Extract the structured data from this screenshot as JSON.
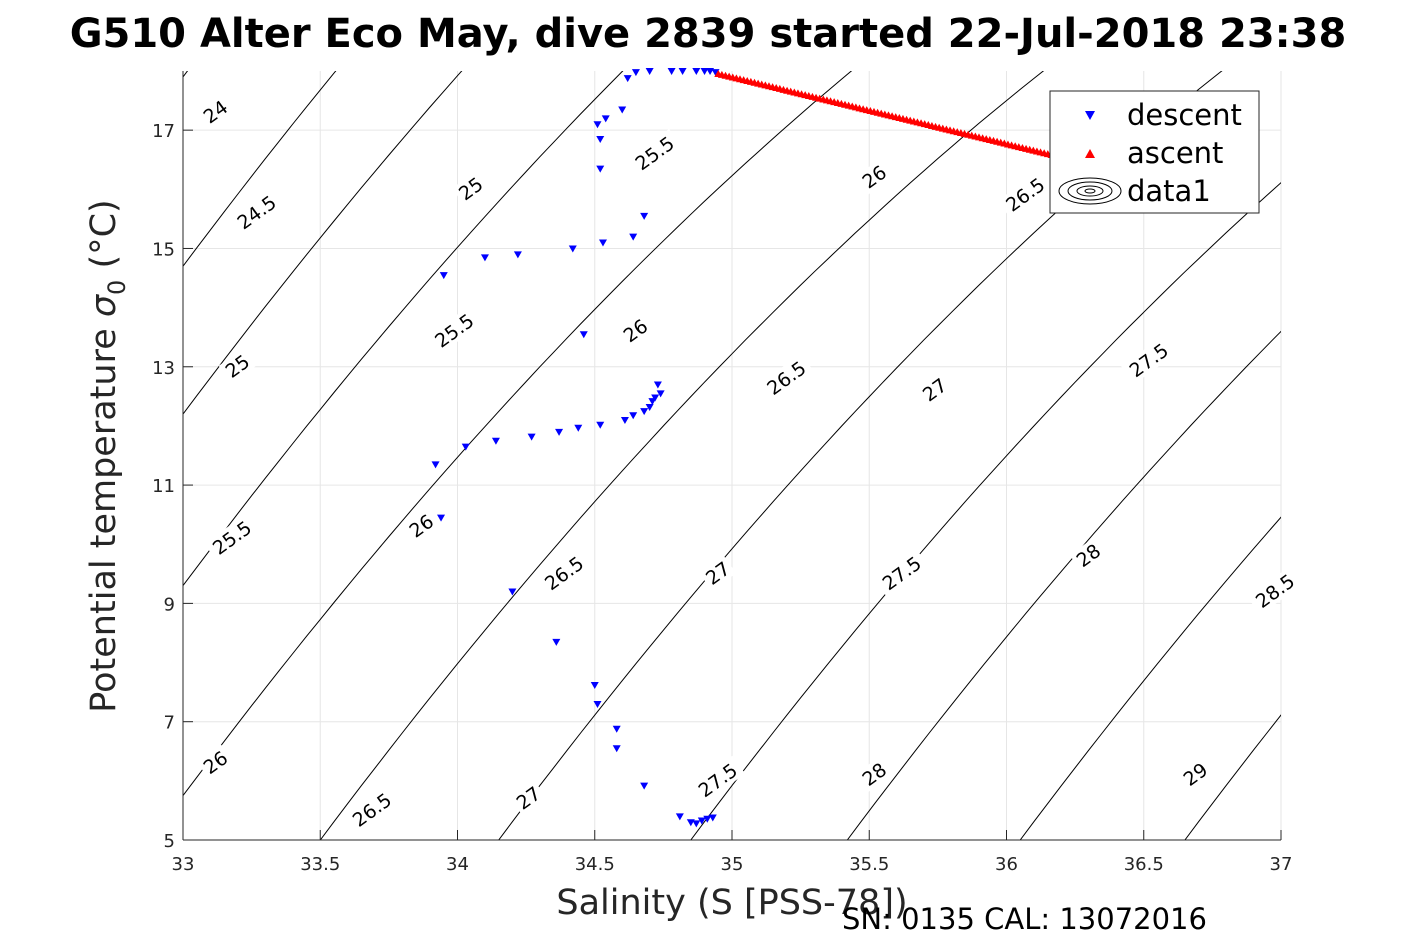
{
  "chart_data": {
    "type": "scatter",
    "title": "G510 Alter Eco May, dive 2839 started 22-Jul-2018 23:38",
    "xlabel": "Salinity (S [PSS-78])",
    "ylabel_prefix": "Potential temperature ",
    "ylabel_sigma": "σ",
    "ylabel_sub": "0",
    "ylabel_suffix": " (°C)",
    "xlim": [
      33,
      37
    ],
    "ylim": [
      5,
      18
    ],
    "x_ticks": [
      33,
      33.5,
      34,
      34.5,
      35,
      35.5,
      36,
      36.5,
      37
    ],
    "x_tick_labels": [
      "33",
      "33.5",
      "34",
      "34.5",
      "35",
      "35.5",
      "36",
      "36.5",
      "37"
    ],
    "y_ticks": [
      5,
      7,
      9,
      11,
      13,
      15,
      17
    ],
    "y_tick_labels": [
      "5",
      "7",
      "9",
      "11",
      "13",
      "15",
      "17"
    ],
    "grid": true,
    "legend_position": "top-right",
    "series": [
      {
        "name": "descent",
        "marker": "triangle-down",
        "color": "#0000ff",
        "points": [
          [
            33.95,
            14.55
          ],
          [
            34.1,
            14.85
          ],
          [
            34.22,
            14.9
          ],
          [
            34.42,
            15.0
          ],
          [
            34.53,
            15.1
          ],
          [
            34.64,
            15.2
          ],
          [
            34.68,
            15.55
          ],
          [
            34.52,
            16.35
          ],
          [
            34.52,
            16.85
          ],
          [
            34.51,
            17.1
          ],
          [
            34.54,
            17.2
          ],
          [
            34.6,
            17.35
          ],
          [
            34.62,
            17.88
          ],
          [
            34.65,
            17.98
          ],
          [
            34.7,
            18.0
          ],
          [
            34.78,
            18.0
          ],
          [
            34.82,
            18.0
          ],
          [
            34.87,
            18.0
          ],
          [
            34.9,
            18.0
          ],
          [
            34.92,
            18.0
          ],
          [
            34.94,
            17.98
          ],
          [
            34.46,
            13.55
          ],
          [
            33.92,
            11.35
          ],
          [
            34.03,
            11.65
          ],
          [
            34.14,
            11.75
          ],
          [
            34.27,
            11.82
          ],
          [
            34.37,
            11.9
          ],
          [
            34.44,
            11.97
          ],
          [
            34.52,
            12.02
          ],
          [
            34.61,
            12.1
          ],
          [
            34.64,
            12.18
          ],
          [
            34.68,
            12.25
          ],
          [
            34.7,
            12.32
          ],
          [
            34.71,
            12.42
          ],
          [
            34.72,
            12.48
          ],
          [
            34.74,
            12.55
          ],
          [
            34.73,
            12.7
          ],
          [
            33.94,
            10.45
          ],
          [
            34.2,
            9.2
          ],
          [
            34.36,
            8.35
          ],
          [
            34.5,
            7.62
          ],
          [
            34.51,
            7.3
          ],
          [
            34.58,
            6.88
          ],
          [
            34.58,
            6.55
          ],
          [
            34.68,
            5.92
          ],
          [
            34.81,
            5.4
          ],
          [
            34.85,
            5.3
          ],
          [
            34.87,
            5.28
          ],
          [
            34.89,
            5.33
          ],
          [
            34.91,
            5.36
          ],
          [
            34.93,
            5.38
          ]
        ]
      },
      {
        "name": "ascent",
        "marker": "triangle-up",
        "color": "#ff0000",
        "points": [
          [
            34.95,
            17.95
          ],
          [
            36.19,
            16.55
          ]
        ]
      },
      {
        "name": "data1",
        "marker": "contour",
        "color": "#000000",
        "points": []
      }
    ],
    "density_contours": [
      {
        "sigma": 24,
        "anchor": [
          33,
          17.9
        ],
        "label_at": [
          33.12,
          17.3
        ]
      },
      {
        "sigma": 24.5,
        "anchor": [
          33,
          14.7
        ],
        "label_at": [
          33.27,
          15.6
        ]
      },
      {
        "sigma": 25,
        "anchor": [
          33,
          12.2
        ],
        "label_at": [
          34.05,
          16.0
        ]
      },
      {
        "sigma": 25,
        "anchor": [
          33,
          12.2
        ],
        "label_at": [
          33.2,
          13.0
        ]
      },
      {
        "sigma": 25.5,
        "anchor": [
          33,
          9.3
        ],
        "label_at": [
          33.18,
          10.1
        ]
      },
      {
        "sigma": 25.5,
        "anchor": [
          33,
          9.3
        ],
        "label_at": [
          33.99,
          13.6
        ]
      },
      {
        "sigma": 25.5,
        "anchor": [
          33,
          9.3
        ],
        "label_at": [
          34.72,
          16.6
        ]
      },
      {
        "sigma": 26,
        "anchor": [
          33,
          5.75
        ],
        "label_at": [
          33.12,
          6.3
        ]
      },
      {
        "sigma": 26,
        "anchor": [
          33,
          5.75
        ],
        "label_at": [
          33.87,
          10.3
        ]
      },
      {
        "sigma": 26,
        "anchor": [
          33,
          5.75
        ],
        "label_at": [
          34.65,
          13.6
        ]
      },
      {
        "sigma": 26,
        "anchor": [
          33,
          5.75
        ],
        "label_at": [
          35.52,
          16.2
        ]
      },
      {
        "sigma": 26.5,
        "anchor": [
          33.5,
          5.0
        ],
        "label_at": [
          33.69,
          5.5
        ]
      },
      {
        "sigma": 26.5,
        "anchor": [
          33.5,
          5.0
        ],
        "label_at": [
          34.39,
          9.5
        ]
      },
      {
        "sigma": 26.5,
        "anchor": [
          33.5,
          5.0
        ],
        "label_at": [
          35.2,
          12.8
        ]
      },
      {
        "sigma": 26.5,
        "anchor": [
          33.5,
          5.0
        ],
        "label_at": [
          36.07,
          15.9
        ]
      },
      {
        "sigma": 27,
        "anchor": [
          34.15,
          5.0
        ],
        "label_at": [
          34.26,
          5.7
        ]
      },
      {
        "sigma": 27,
        "anchor": [
          34.15,
          5.0
        ],
        "label_at": [
          34.95,
          9.5
        ]
      },
      {
        "sigma": 27,
        "anchor": [
          34.15,
          5.0
        ],
        "label_at": [
          35.74,
          12.6
        ]
      },
      {
        "sigma": 27.5,
        "anchor": [
          34.85,
          5.0
        ],
        "label_at": [
          34.95,
          6.0
        ]
      },
      {
        "sigma": 27.5,
        "anchor": [
          34.85,
          5.0
        ],
        "label_at": [
          35.62,
          9.5
        ]
      },
      {
        "sigma": 27.5,
        "anchor": [
          34.85,
          5.0
        ],
        "label_at": [
          36.52,
          13.1
        ]
      },
      {
        "sigma": 28,
        "anchor": [
          35.42,
          5.0
        ],
        "label_at": [
          35.52,
          6.1
        ]
      },
      {
        "sigma": 28,
        "anchor": [
          35.42,
          5.0
        ],
        "label_at": [
          36.3,
          9.8
        ]
      },
      {
        "sigma": 28.5,
        "anchor": [
          36.05,
          5.0
        ],
        "label_at": [
          36.98,
          9.2
        ]
      },
      {
        "sigma": 29,
        "anchor": [
          36.65,
          5.0
        ],
        "label_at": [
          36.69,
          6.1
        ]
      }
    ],
    "footer": "SN: 0135  CAL: 13072016"
  }
}
